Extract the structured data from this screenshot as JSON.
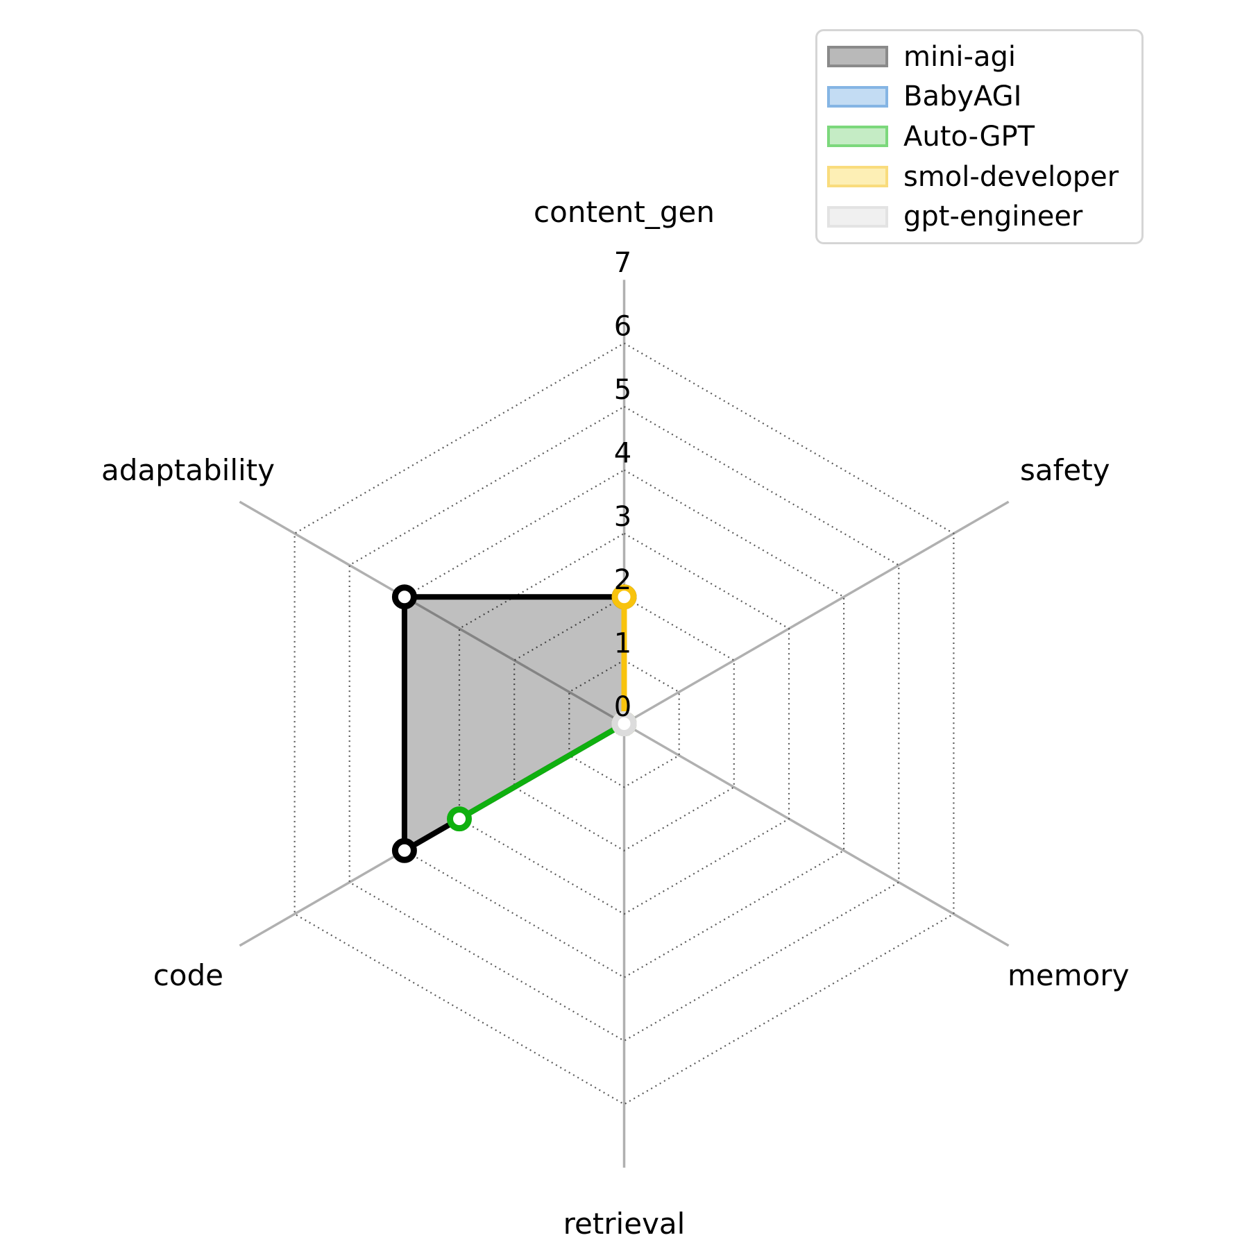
{
  "chart_data": {
    "type": "radar",
    "categories": [
      "content_gen",
      "safety",
      "memory",
      "retrieval",
      "code",
      "adaptability"
    ],
    "radial_ticks": [
      0,
      1,
      2,
      3,
      4,
      5,
      6,
      7
    ],
    "rmax": 7,
    "grid_rings": [
      1,
      2,
      3,
      4,
      5,
      6
    ],
    "grid_style": "dotted",
    "legend_position": "top-right",
    "axis_line_color": "#b0b0b0",
    "grid_dot_color": "#5a5a5a",
    "series": [
      {
        "name": "mini-agi",
        "values": [
          2,
          0,
          0,
          0,
          4,
          4
        ],
        "color": "#000000",
        "fill": "rgba(0,0,0,0.25)",
        "legend_face": "#b9b9b9",
        "legend_edge": "#8a8a8a"
      },
      {
        "name": "BabyAGI",
        "values": [
          0,
          0,
          0,
          0,
          0,
          0
        ],
        "color": "#2f7fc1",
        "fill": "rgba(47,127,193,0.25)",
        "legend_face": "#c3dcf3",
        "legend_edge": "#85b5e4"
      },
      {
        "name": "Auto-GPT",
        "values": [
          0,
          0,
          0,
          0,
          3,
          0
        ],
        "color": "#0fb00f",
        "fill": "rgba(15,176,15,0.25)",
        "legend_face": "#c5ecc5",
        "legend_edge": "#7cd87c"
      },
      {
        "name": "smol-developer",
        "values": [
          2,
          0,
          0,
          0,
          0,
          0
        ],
        "color": "#f8c30d",
        "fill": "rgba(248,195,13,0.25)",
        "legend_face": "#fdefb5",
        "legend_edge": "#f9dc7d"
      },
      {
        "name": "gpt-engineer",
        "values": [
          0,
          0,
          0,
          0,
          0,
          0
        ],
        "color": "#dcdcdc",
        "fill": "rgba(220,220,220,0.25)",
        "legend_face": "#f0f0f0",
        "legend_edge": "#e3e3e3"
      }
    ]
  }
}
